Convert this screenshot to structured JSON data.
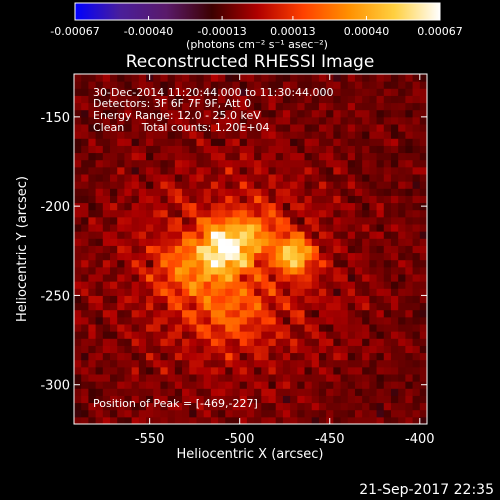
{
  "chart_data": {
    "type": "heatmap",
    "title": "Reconstructed RHESSI Image",
    "xlabel": "Heliocentric X (arcsec)",
    "ylabel": "Heliocentric Y (arcsec)",
    "xlim": [
      -592,
      -396
    ],
    "ylim": [
      -322,
      -126
    ],
    "x_ticks": [
      -550,
      -500,
      -450,
      -400
    ],
    "y_ticks": [
      -150,
      -200,
      -250,
      -300
    ],
    "x_tick_labels": [
      "-550",
      "-500",
      "-450",
      "-400"
    ],
    "y_tick_labels": [
      "-150",
      "-200",
      "-250",
      "-300"
    ],
    "grid": false,
    "colorscale": {
      "min": -0.00067,
      "max": 0.00067,
      "ticks": [
        -0.00067,
        -0.0004,
        -0.00013,
        0.00013,
        0.0004,
        0.00067
      ],
      "tick_labels": [
        "-0.00067",
        "-0.00040",
        "-0.00013",
        "0.00013",
        "0.00040",
        "0.00067"
      ],
      "units_label": "(photons cm⁻² s⁻¹ asec⁻²)",
      "colors": [
        "#0000ff",
        "#4a1e9a",
        "#5a1a6a",
        "#3c0000",
        "#b00000",
        "#ff4000",
        "#ff9000",
        "#ffd040",
        "#ffffff"
      ]
    },
    "peak": {
      "x": -469,
      "y": -227
    },
    "sources": [
      {
        "x": -508,
        "y": -223,
        "sigma": 10,
        "amp": 1.0
      },
      {
        "x": -470,
        "y": -227,
        "sigma": 7,
        "amp": 0.85
      },
      {
        "x": -490,
        "y": -213,
        "sigma": 8,
        "amp": 0.4
      },
      {
        "x": -530,
        "y": -236,
        "sigma": 12,
        "amp": 0.35
      },
      {
        "x": -505,
        "y": -258,
        "sigma": 14,
        "amp": 0.3
      }
    ],
    "annotations": {
      "time_range": "30-Dec-2014 11:20:44.000 to 11:30:44.000",
      "detectors": "Detectors: 3F 6F 7F 9F, Att 0",
      "energy_range": "Energy Range: 12.0 - 25.0 keV",
      "method_counts": "Clean     Total counts: 1.20E+04",
      "peak_position": "Position of Peak = [-469,-227]"
    },
    "footer_timestamp": "21-Sep-2017 22:35"
  }
}
